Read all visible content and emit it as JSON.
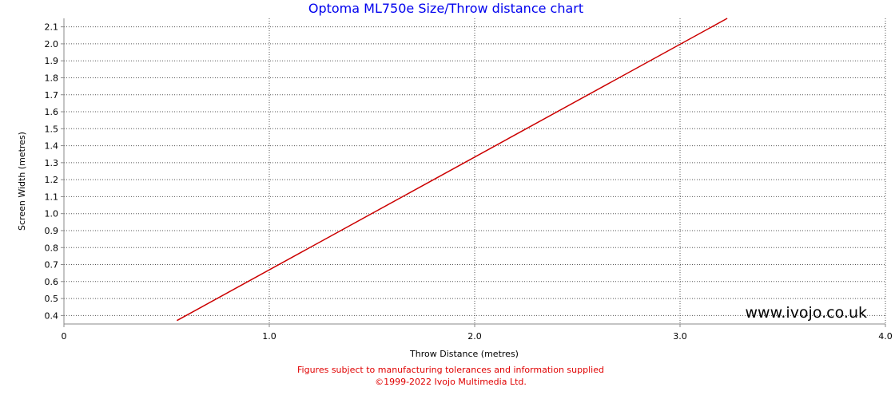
{
  "chart_data": {
    "type": "line",
    "title": "Optoma ML750e Size/Throw distance chart",
    "xlabel": "Throw Distance (metres)",
    "ylabel": "Screen Width (metres)",
    "xlim": [
      0,
      4.0
    ],
    "ylim": [
      0.35,
      2.15
    ],
    "xticks": [
      "0",
      "1.0",
      "2.0",
      "3.0",
      "4.0"
    ],
    "yticks": [
      "0.4",
      "0.5",
      "0.6",
      "0.7",
      "0.8",
      "0.9",
      "1.0",
      "1.1",
      "1.2",
      "1.3",
      "1.4",
      "1.5",
      "1.6",
      "1.7",
      "1.8",
      "1.9",
      "2.0",
      "2.1"
    ],
    "grid": true,
    "series": [
      {
        "x": [
          0.55,
          3.23
        ],
        "y": [
          0.37,
          2.15
        ],
        "color": "#cc0000"
      }
    ],
    "watermark": "www.ivojo.co.uk"
  },
  "footer": {
    "note": "Figures subject to manufacturing tolerances and information supplied",
    "copyright": "©1999-2022 Ivojo Multimedia Ltd."
  }
}
